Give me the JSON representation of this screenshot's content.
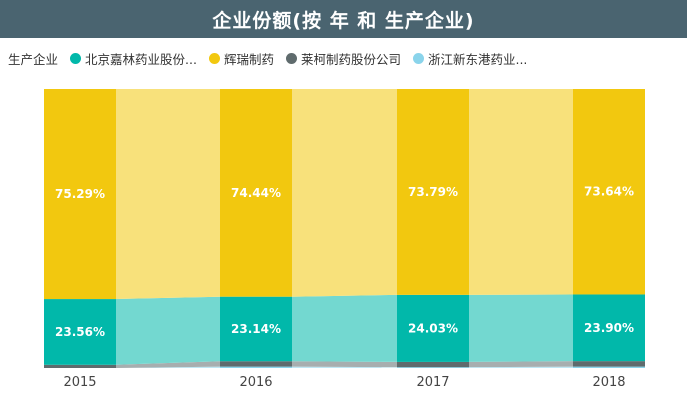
{
  "header": {
    "title": "企业份额(按 年 和 生产企业)"
  },
  "legend": {
    "title": "生产企业",
    "items": [
      {
        "label": "北京嘉林药业股份...",
        "color": "#01b8aa"
      },
      {
        "label": "辉瑞制药",
        "color": "#f2c80f"
      },
      {
        "label": "莱柯制药股份公司",
        "color": "#5f6b6d"
      },
      {
        "label": "浙江新东港药业...",
        "color": "#8ad4eb"
      }
    ]
  },
  "chart_data": {
    "type": "bar",
    "stacked": "100%",
    "title": "企业份额(按 年 和 生产企业)",
    "categories": [
      "2015",
      "2016",
      "2017",
      "2018"
    ],
    "series": [
      {
        "name": "浙江新东港药业...",
        "color": "#8ad4eb",
        "values": [
          0.0,
          0.5,
          0.3,
          0.5
        ]
      },
      {
        "name": "莱柯制药股份公司",
        "color": "#5f6b6d",
        "values": [
          1.15,
          1.92,
          1.88,
          1.96
        ]
      },
      {
        "name": "北京嘉林药业股份...",
        "color": "#01b8aa",
        "values": [
          23.56,
          23.14,
          24.03,
          23.9
        ]
      },
      {
        "name": "辉瑞制药",
        "color": "#f2c80f",
        "values": [
          75.29,
          74.44,
          73.79,
          73.64
        ]
      }
    ],
    "labels": {
      "北京嘉林药业股份...": [
        "23.56%",
        "23.14%",
        "24.03%",
        "23.90%"
      ],
      "辉瑞制药": [
        "75.29%",
        "74.44%",
        "73.79%",
        "73.64%"
      ]
    },
    "ylim": [
      0,
      100
    ],
    "xlabel": "",
    "ylabel": ""
  }
}
